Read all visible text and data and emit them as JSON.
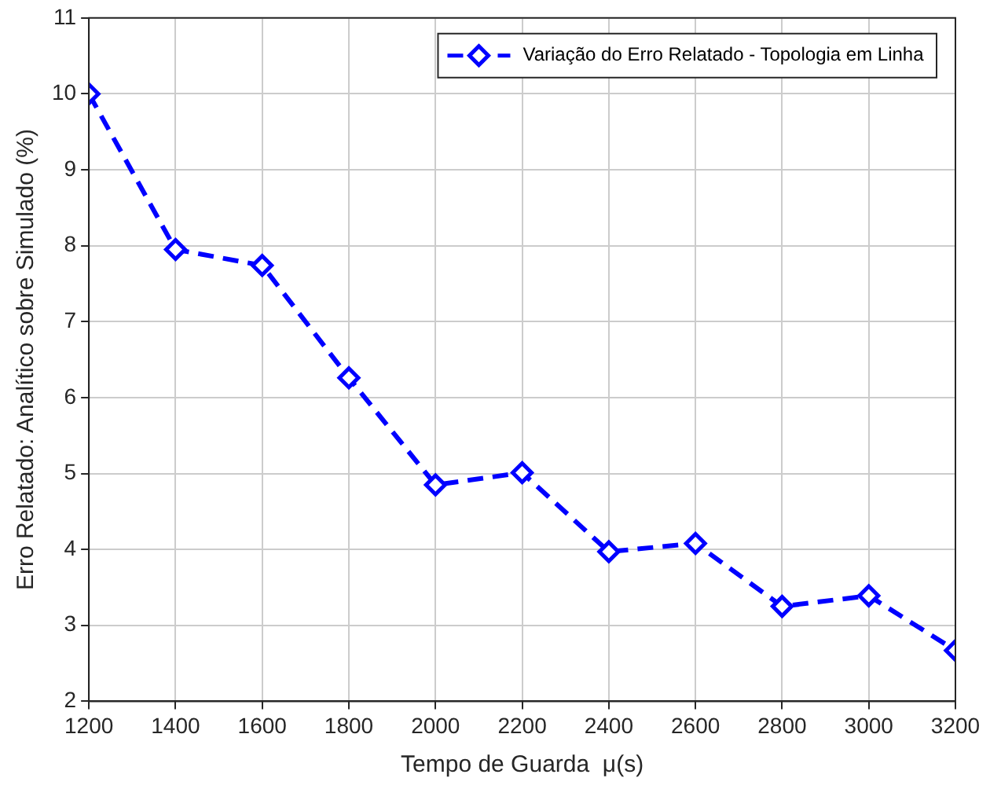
{
  "chart_data": {
    "type": "line",
    "xlabel": "Tempo de Guarda  μ(s)",
    "ylabel": "Erro Relatado: Analítico sobre Simulado (%)",
    "x": [
      1200,
      1400,
      1600,
      1800,
      2000,
      2200,
      2400,
      2600,
      2800,
      3000,
      3200
    ],
    "series": [
      {
        "name": "Variação do Erro Relatado - Topologia em Linha",
        "color": "#0000ff",
        "values": [
          10.0,
          7.95,
          7.74,
          6.26,
          4.85,
          5.01,
          3.97,
          4.08,
          3.25,
          3.39,
          2.67
        ]
      }
    ],
    "xlim": [
      1200,
      3200
    ],
    "xticks": [
      1200,
      1400,
      1600,
      1800,
      2000,
      2200,
      2400,
      2600,
      2800,
      3000,
      3200
    ],
    "ylim": [
      2,
      11
    ],
    "yticks": [
      2,
      3,
      4,
      5,
      6,
      7,
      8,
      9,
      10,
      11
    ],
    "grid": true,
    "legend": "top right",
    "marker": "diamond",
    "line_style": "dashed"
  }
}
